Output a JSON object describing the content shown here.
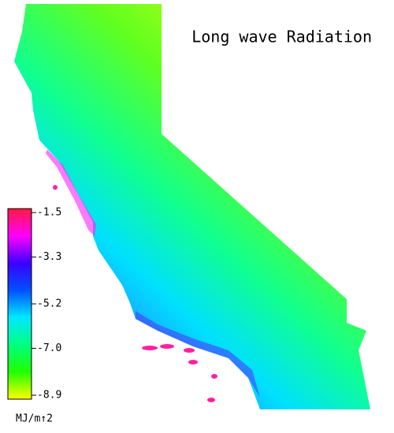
{
  "title": "Long wave Radiation",
  "colorbar": {
    "unit": "MJ/m↑2",
    "lim": [
      -8.9,
      -1.5
    ],
    "ticks": [
      -1.5,
      -3.3,
      -5.2,
      {
        "value": -7,
        "label": "-7.0"
      },
      -8.9
    ],
    "colors": [
      "#ff1a40",
      "#ff00ff",
      "#3a00ff",
      "#0050ff",
      "#00e8ff",
      "#00ff80",
      "#20ff00",
      "#ffff00"
    ]
  }
}
